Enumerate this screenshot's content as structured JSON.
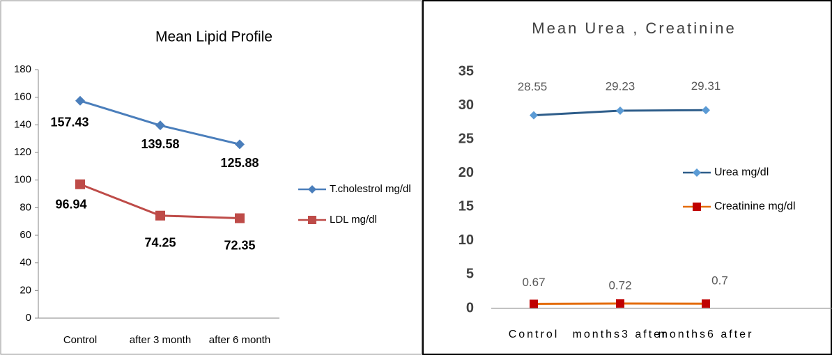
{
  "chart_data": [
    {
      "type": "line",
      "title": "Mean Lipid Profile",
      "categories": [
        "Control",
        "after 3 month",
        "after 6 month"
      ],
      "series": [
        {
          "name": "T.cholestrol  mg/dl",
          "color": "#4a7ebb",
          "marker": "diamond",
          "values": [
            157.43,
            139.58,
            125.88
          ]
        },
        {
          "name": "LDL mg/dl",
          "color": "#be4b48",
          "marker": "square",
          "values": [
            96.94,
            74.25,
            72.35
          ]
        }
      ],
      "ylim": [
        0,
        180
      ],
      "yticks": [
        0,
        20,
        40,
        60,
        80,
        100,
        120,
        140,
        160,
        180
      ],
      "grid": false,
      "legend": "right"
    },
    {
      "type": "line",
      "title": "Mean Urea , Creatinine",
      "categories": [
        "Control",
        "months3 after",
        "months6 after"
      ],
      "series": [
        {
          "name": "Urea mg/dl",
          "color": "#2e5d8a",
          "marker_color": "#5b9bd5",
          "marker": "diamond",
          "values": [
            28.55,
            29.23,
            29.31
          ]
        },
        {
          "name": "Creatinine mg/dl",
          "color": "#e46c0a",
          "marker_color": "#c00000",
          "marker": "square",
          "values": [
            0.67,
            0.72,
            0.7
          ]
        }
      ],
      "ylim": [
        0,
        35
      ],
      "yticks": [
        0,
        5,
        10,
        15,
        20,
        25,
        30,
        35
      ],
      "grid": false,
      "legend": "right"
    }
  ]
}
